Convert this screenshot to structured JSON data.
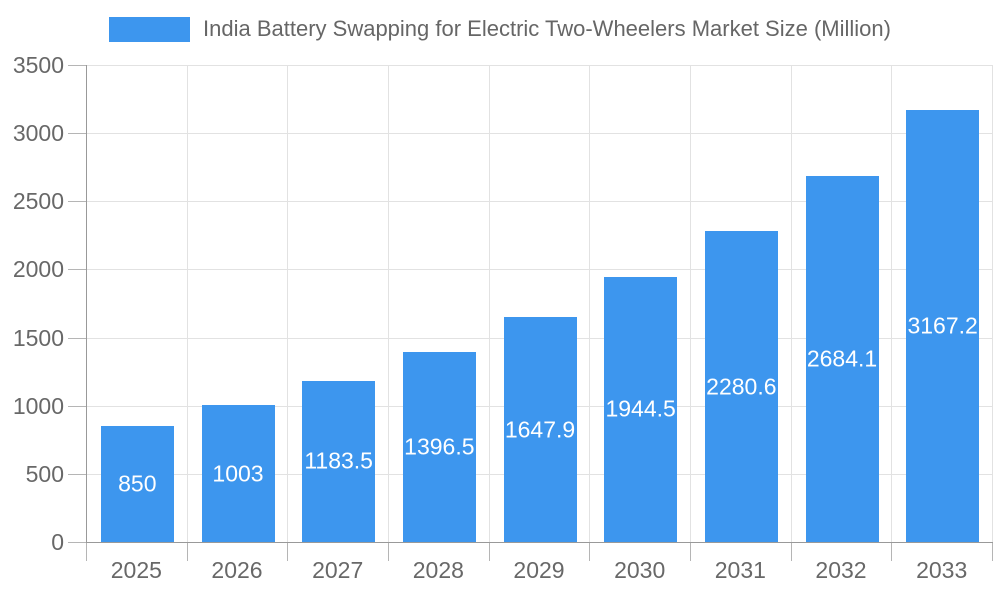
{
  "legend": {
    "label": "India Battery Swapping for Electric Two-Wheelers Market Size (Million)"
  },
  "colors": {
    "bar": "#3d96ee",
    "grid": "#e2e2e2",
    "axis": "#999999",
    "tick": "#b5b5b5",
    "tick_label": "#686868",
    "value_label": "#ffffff",
    "legend_text": "#666666",
    "background": "#ffffff"
  },
  "chart_data": {
    "type": "bar",
    "title": "India Battery Swapping for Electric Two-Wheelers Market Size (Million)",
    "xlabel": "",
    "ylabel": "",
    "categories": [
      "2025",
      "2026",
      "2027",
      "2028",
      "2029",
      "2030",
      "2031",
      "2032",
      "2033"
    ],
    "values": [
      850,
      1003,
      1183.5,
      1396.5,
      1647.9,
      1944.5,
      2280.6,
      2684.1,
      3167.2
    ],
    "value_labels": [
      "850",
      "1003",
      "1183.5",
      "1396.5",
      "1647.9",
      "1944.5",
      "2280.6",
      "2684.1",
      "3167.2"
    ],
    "ylim": [
      0,
      3500
    ],
    "ytick_interval": 500,
    "ytick_labels": [
      "0",
      "500",
      "1000",
      "1500",
      "2000",
      "2500",
      "3000",
      "3500"
    ],
    "grid": true,
    "legend_position": "top",
    "value_label_position": "center-inside"
  }
}
